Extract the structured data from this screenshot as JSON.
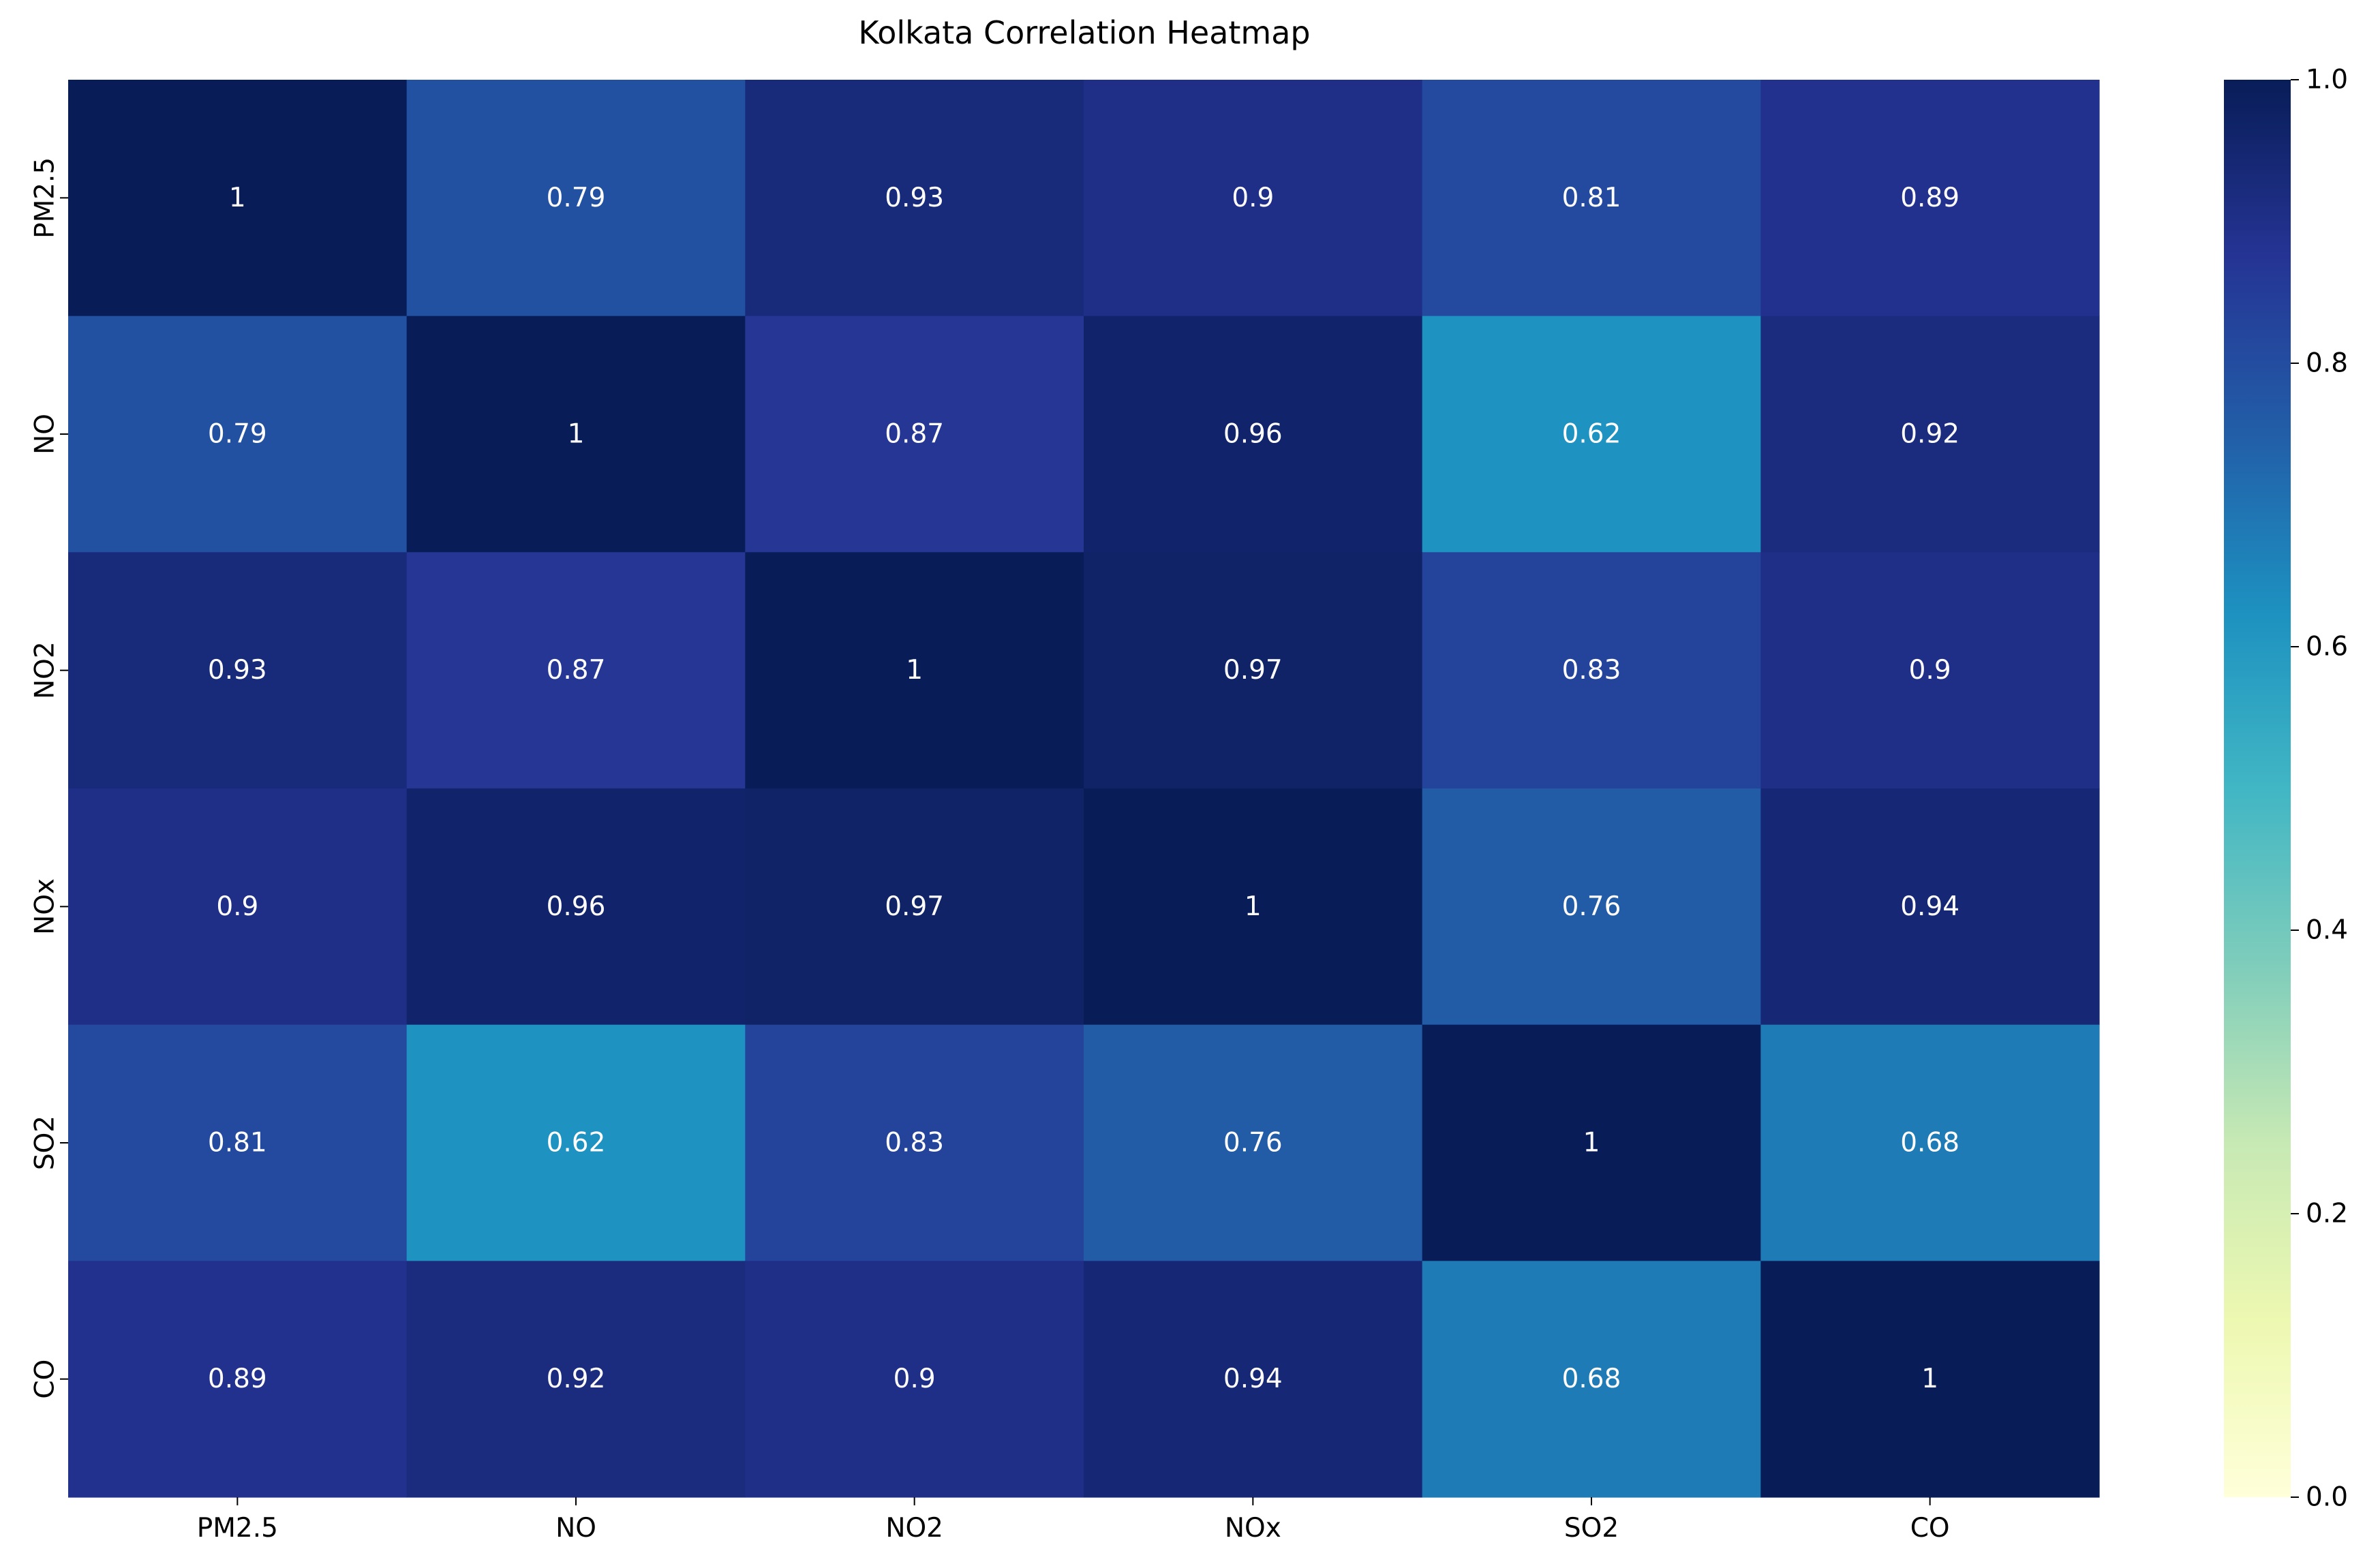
{
  "chart_data": {
    "type": "heatmap",
    "title": "Kolkata Correlation Heatmap",
    "xlabel": "",
    "ylabel": "",
    "x_categories": [
      "PM2.5",
      "NO",
      "NO2",
      "NOx",
      "SO2",
      "CO"
    ],
    "y_categories": [
      "PM2.5",
      "NO",
      "NO2",
      "NOx",
      "SO2",
      "CO"
    ],
    "values": [
      [
        1,
        0.79,
        0.93,
        0.9,
        0.81,
        0.89
      ],
      [
        0.79,
        1,
        0.87,
        0.96,
        0.62,
        0.92
      ],
      [
        0.93,
        0.87,
        1,
        0.97,
        0.83,
        0.9
      ],
      [
        0.9,
        0.96,
        0.97,
        1,
        0.76,
        0.94
      ],
      [
        0.81,
        0.62,
        0.83,
        0.76,
        1,
        0.68
      ],
      [
        0.89,
        0.92,
        0.9,
        0.94,
        0.68,
        1
      ]
    ],
    "annotations": true,
    "colormap": "YlGnBu",
    "colorbar": {
      "range": [
        0.0,
        1.0
      ],
      "ticks": [
        0.0,
        0.2,
        0.4,
        0.6,
        0.8,
        1.0
      ],
      "tick_labels": [
        "0.0",
        "0.2",
        "0.4",
        "0.6",
        "0.8",
        "1.0"
      ]
    },
    "grid": false,
    "colors": {
      "annotation_text": "#ffffff",
      "axis_text": "#000000",
      "background": "#ffffff"
    }
  }
}
